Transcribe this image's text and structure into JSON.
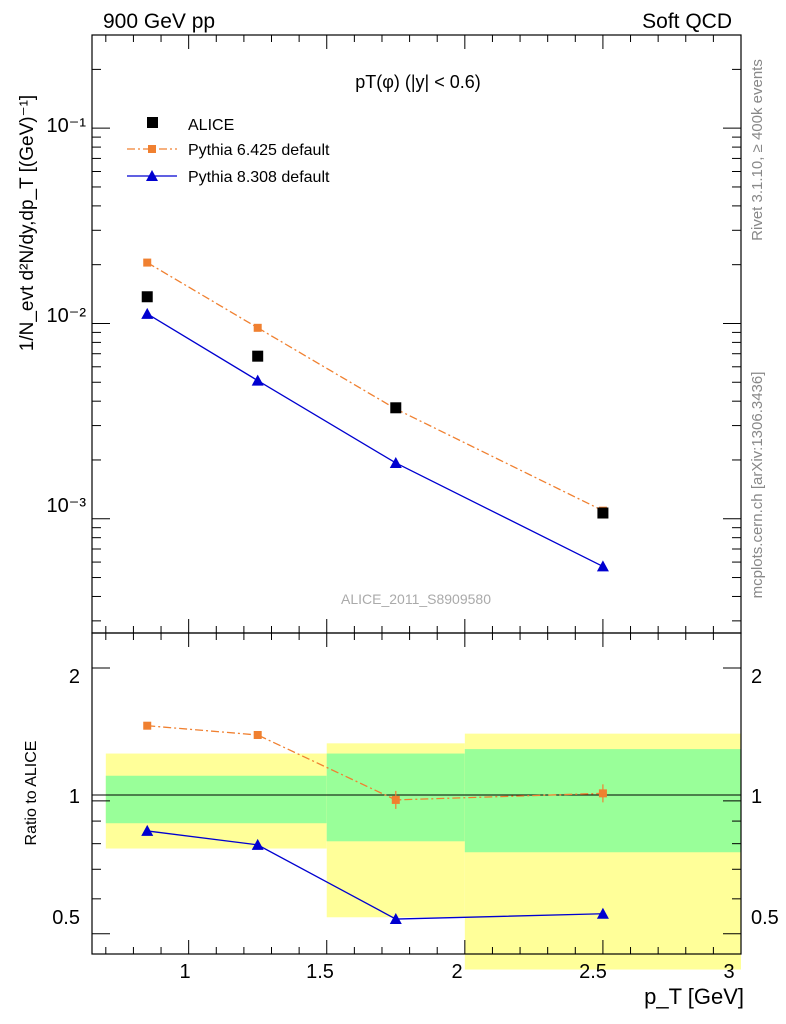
{
  "header": {
    "left": "900 GeV pp",
    "right": "Soft QCD"
  },
  "side_labels": {
    "rivet": "Rivet 3.1.10, ≥ 400k events",
    "source": "mcplots.cern.ch [arXiv:1306.3436]"
  },
  "chart_data": [
    {
      "type": "line",
      "title": "pT(φ) (|y| < 0.6)",
      "watermark": "ALICE_2011_S8909580",
      "ylabel": "1/N_evt d²N/dy,dp_T [(GeV)⁻¹]",
      "yscale": "log",
      "xlim": [
        0.65,
        3.0
      ],
      "ylim": [
        0.00026,
        0.3
      ],
      "y_tick_labels": [
        "10⁻³",
        "10⁻²",
        "10⁻¹"
      ],
      "legend_position": "top-left",
      "series": [
        {
          "name": "ALICE",
          "style": "marker",
          "color": "#000000",
          "marker": "square",
          "x": [
            0.85,
            1.25,
            1.75,
            2.5
          ],
          "values": [
            0.0137,
            0.0068,
            0.0037,
            0.00107
          ]
        },
        {
          "name": "Pythia 6.425 default",
          "style": "dashdot",
          "color": "#f08030",
          "marker": "square",
          "x": [
            0.85,
            1.25,
            1.75,
            2.5
          ],
          "values": [
            0.0205,
            0.0095,
            0.00365,
            0.0011
          ]
        },
        {
          "name": "Pythia 8.308 default",
          "style": "solid",
          "color": "#0000d0",
          "marker": "triangle",
          "x": [
            0.85,
            1.25,
            1.75,
            2.5
          ],
          "values": [
            0.0112,
            0.0051,
            0.00193,
            0.00057
          ]
        }
      ]
    },
    {
      "type": "line",
      "ylabel": "Ratio to ALICE",
      "xlabel": "p_T [GeV]",
      "yscale": "log",
      "xlim": [
        0.65,
        3.0
      ],
      "ylim": [
        0.45,
        2.4
      ],
      "x_tick_labels": [
        "1",
        "1.5",
        "2",
        "2.5",
        "3"
      ],
      "y_tick_labels": [
        "0.5",
        "1",
        "2"
      ],
      "uncertainty_bands": [
        {
          "x": [
            0.7,
            1.5
          ],
          "inner": [
            0.89,
            1.14
          ],
          "outer": [
            0.78,
            1.28
          ]
        },
        {
          "x": [
            1.5,
            2.0
          ],
          "inner": [
            0.81,
            1.28
          ],
          "outer": [
            0.545,
            1.35
          ]
        },
        {
          "x": [
            2.0,
            3.0
          ],
          "inner": [
            0.765,
            1.31
          ],
          "outer": [
            0.415,
            1.42
          ]
        }
      ],
      "band_colors": {
        "inner": "#99ff99",
        "outer": "#ffff99"
      },
      "series": [
        {
          "name": "Pythia 6.425 default",
          "style": "dashdot",
          "color": "#f08030",
          "marker": "square",
          "x": [
            0.85,
            1.25,
            1.75,
            2.5
          ],
          "values": [
            1.48,
            1.41,
            1.005,
            1.04
          ]
        },
        {
          "name": "Pythia 8.308 default",
          "style": "solid",
          "color": "#0000d0",
          "marker": "triangle",
          "x": [
            0.85,
            1.25,
            1.75,
            2.5
          ],
          "values": [
            0.855,
            0.795,
            0.54,
            0.555
          ]
        }
      ]
    }
  ]
}
